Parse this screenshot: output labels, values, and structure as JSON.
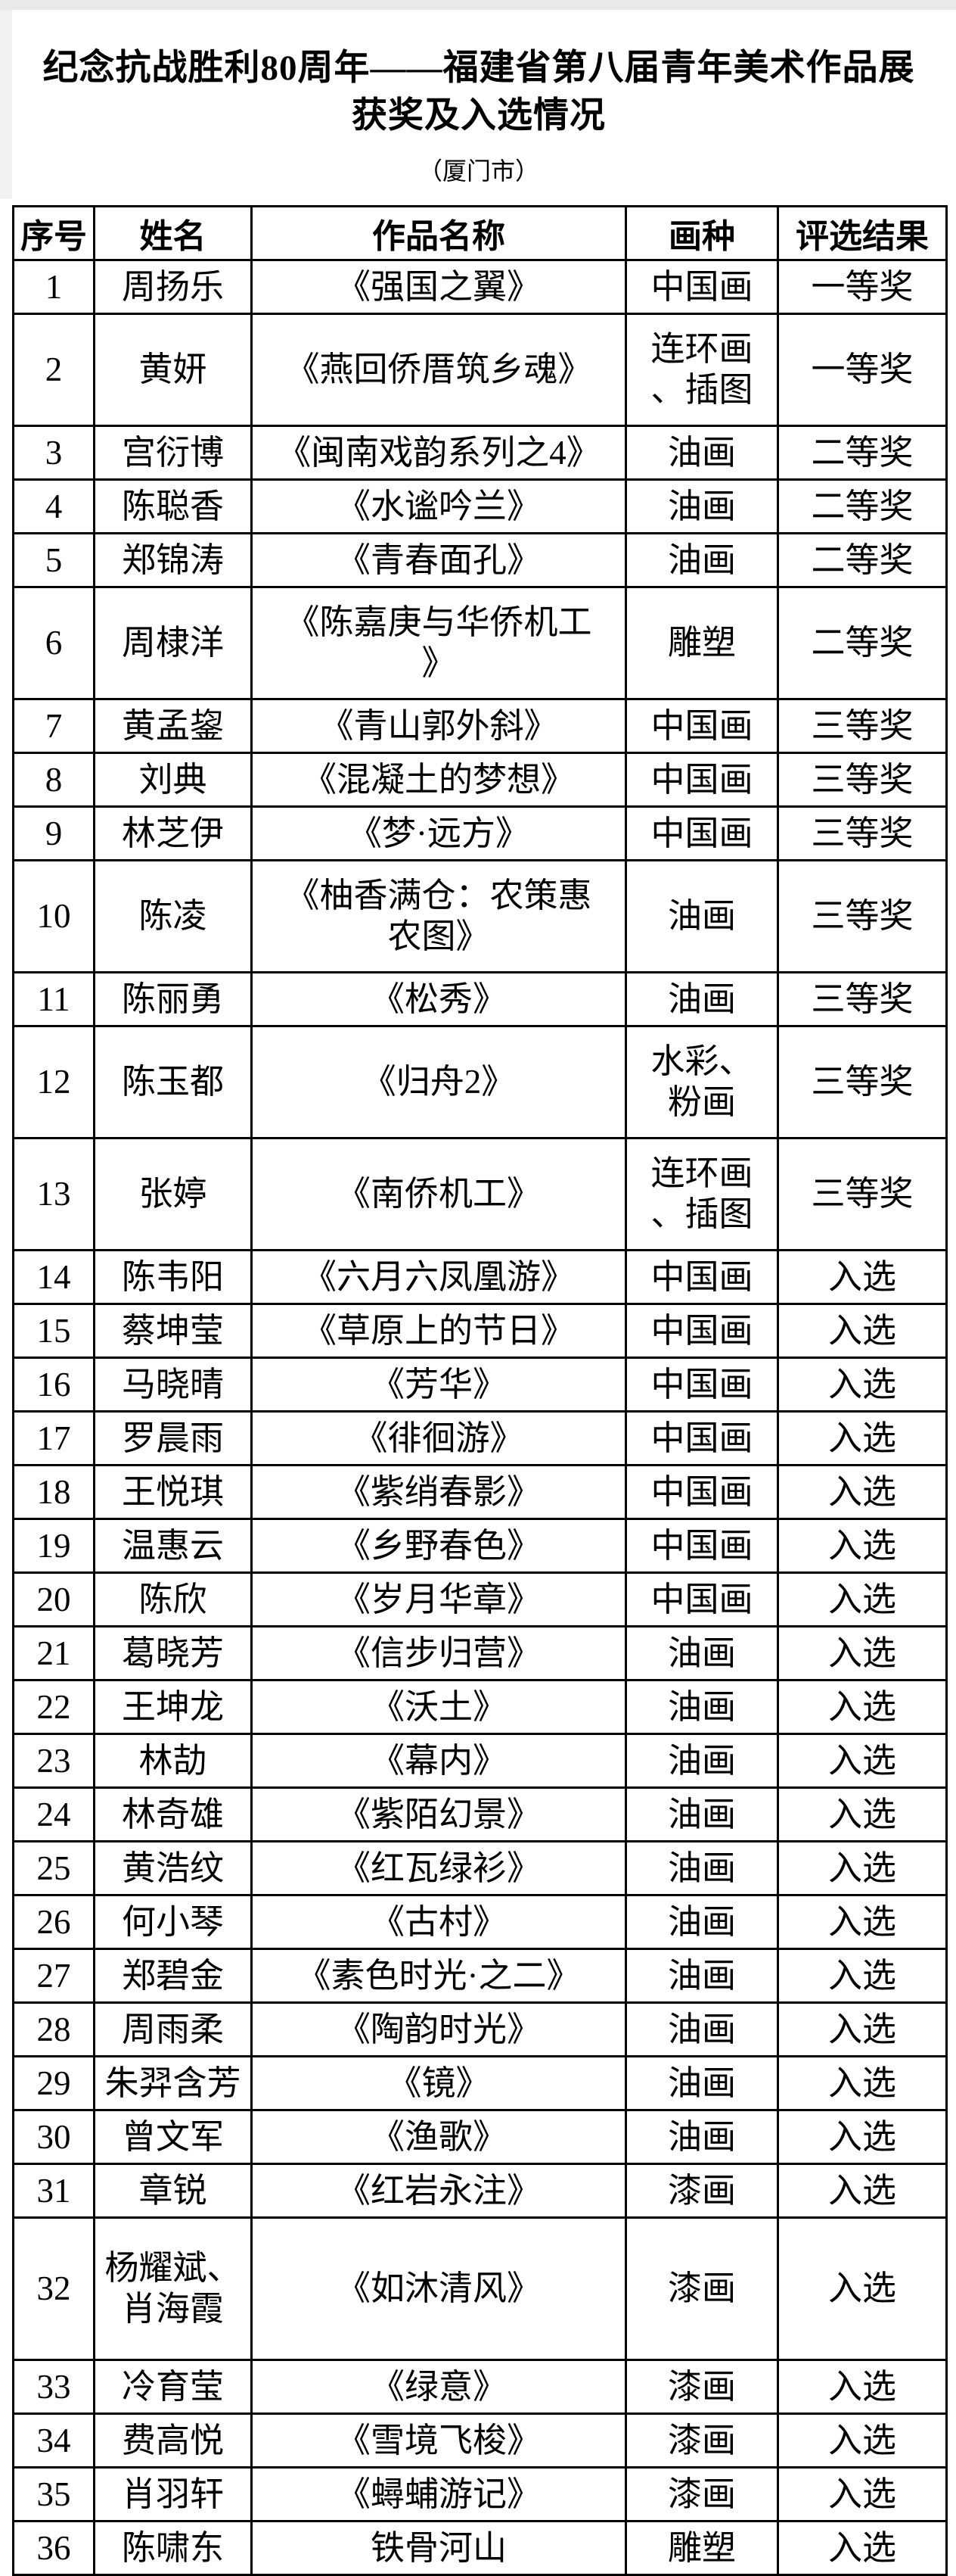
{
  "page": {
    "title_line1": "纪念抗战胜利80周年——福建省第八届青年美术作品展",
    "title_line2": "获奖及入选情况",
    "subtitle": "（厦门市）"
  },
  "table": {
    "headers": [
      "序号",
      "姓名",
      "作品名称",
      "画种",
      "评选结果"
    ],
    "rows": [
      {
        "no": "1",
        "name": "周扬乐",
        "work": "《强国之翼》",
        "medium": "中国画",
        "result": "一等奖"
      },
      {
        "no": "2",
        "name": "黄妍",
        "work": "《燕回侨厝筑乡魂》",
        "medium": "连环画\n、插图",
        "result": "一等奖"
      },
      {
        "no": "3",
        "name": "宫衍博",
        "work": "《闽南戏韵系列之4》",
        "medium": "油画",
        "result": "二等奖"
      },
      {
        "no": "4",
        "name": "陈聪香",
        "work": "《水谧吟兰》",
        "medium": "油画",
        "result": "二等奖"
      },
      {
        "no": "5",
        "name": "郑锦涛",
        "work": "《青春面孔》",
        "medium": "油画",
        "result": "二等奖"
      },
      {
        "no": "6",
        "name": "周棣洋",
        "work": "《陈嘉庚与华侨机工\n》",
        "medium": "雕塑",
        "result": "二等奖"
      },
      {
        "no": "7",
        "name": "黄孟鋆",
        "work": "《青山郭外斜》",
        "medium": "中国画",
        "result": "三等奖"
      },
      {
        "no": "8",
        "name": "刘典",
        "work": "《混凝土的梦想》",
        "medium": "中国画",
        "result": "三等奖"
      },
      {
        "no": "9",
        "name": "林芝伊",
        "work": "《梦·远方》",
        "medium": "中国画",
        "result": "三等奖"
      },
      {
        "no": "10",
        "name": "陈凌",
        "work": "《柚香满仓：农策惠\n农图》",
        "medium": "油画",
        "result": "三等奖"
      },
      {
        "no": "11",
        "name": "陈丽勇",
        "work": "《松秀》",
        "medium": "油画",
        "result": "三等奖"
      },
      {
        "no": "12",
        "name": "陈玉都",
        "work": "《归舟2》",
        "medium": "水彩、\n粉画",
        "result": "三等奖"
      },
      {
        "no": "13",
        "name": "张婷",
        "work": "《南侨机工》",
        "medium": "连环画\n、插图",
        "result": "三等奖"
      },
      {
        "no": "14",
        "name": "陈韦阳",
        "work": "《六月六凤凰游》",
        "medium": "中国画",
        "result": "入选"
      },
      {
        "no": "15",
        "name": "蔡坤莹",
        "work": "《草原上的节日》",
        "medium": "中国画",
        "result": "入选"
      },
      {
        "no": "16",
        "name": "马晓晴",
        "work": "《芳华》",
        "medium": "中国画",
        "result": "入选"
      },
      {
        "no": "17",
        "name": "罗晨雨",
        "work": "《徘徊游》",
        "medium": "中国画",
        "result": "入选"
      },
      {
        "no": "18",
        "name": "王悦琪",
        "work": "《紫绡春影》",
        "medium": "中国画",
        "result": "入选"
      },
      {
        "no": "19",
        "name": "温惠云",
        "work": "《乡野春色》",
        "medium": "中国画",
        "result": "入选"
      },
      {
        "no": "20",
        "name": "陈欣",
        "work": "《岁月华章》",
        "medium": "中国画",
        "result": "入选"
      },
      {
        "no": "21",
        "name": "葛晓芳",
        "work": "《信步归营》",
        "medium": "油画",
        "result": "入选"
      },
      {
        "no": "22",
        "name": "王坤龙",
        "work": "《沃土》",
        "medium": "油画",
        "result": "入选"
      },
      {
        "no": "23",
        "name": "林劼",
        "work": "《幕内》",
        "medium": "油画",
        "result": "入选"
      },
      {
        "no": "24",
        "name": "林奇雄",
        "work": "《紫陌幻景》",
        "medium": "油画",
        "result": "入选"
      },
      {
        "no": "25",
        "name": "黄浩纹",
        "work": "《红瓦绿衫》",
        "medium": "油画",
        "result": "入选"
      },
      {
        "no": "26",
        "name": "何小琴",
        "work": "《古村》",
        "medium": "油画",
        "result": "入选"
      },
      {
        "no": "27",
        "name": "郑碧金",
        "work": "《素色时光·之二》",
        "medium": "油画",
        "result": "入选"
      },
      {
        "no": "28",
        "name": "周雨柔",
        "work": "《陶韵时光》",
        "medium": "油画",
        "result": "入选"
      },
      {
        "no": "29",
        "name": "朱羿含芳",
        "work": "《镜》",
        "medium": "油画",
        "result": "入选"
      },
      {
        "no": "30",
        "name": "曾文军",
        "work": "《渔歌》",
        "medium": "油画",
        "result": "入选"
      },
      {
        "no": "31",
        "name": "章锐",
        "work": "《红岩永注》",
        "medium": "漆画",
        "result": "入选"
      },
      {
        "no": "32",
        "name": "杨耀斌、\n肖海霞",
        "work": "《如沐清风》",
        "medium": "漆画",
        "result": "入选"
      },
      {
        "no": "33",
        "name": "冷育莹",
        "work": "《绿意》",
        "medium": "漆画",
        "result": "入选"
      },
      {
        "no": "34",
        "name": "费高悦",
        "work": "《雪境飞梭》",
        "medium": "漆画",
        "result": "入选"
      },
      {
        "no": "35",
        "name": "肖羽轩",
        "work": "《蟳蜅游记》",
        "medium": "漆画",
        "result": "入选"
      },
      {
        "no": "36",
        "name": "陈啸东",
        "work": "铁骨河山",
        "medium": "雕塑",
        "result": "入选"
      }
    ]
  }
}
